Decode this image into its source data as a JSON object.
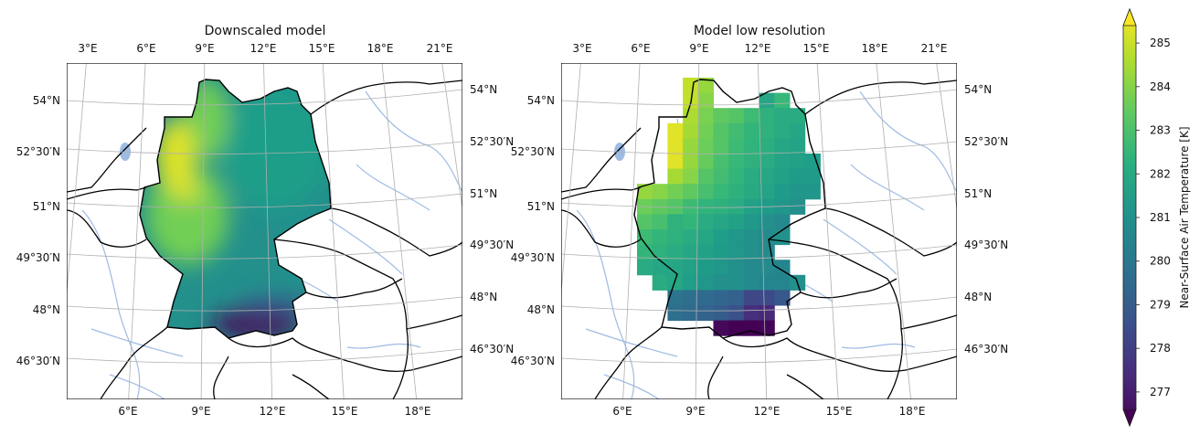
{
  "panels": [
    {
      "title": "Downscaled model",
      "top_lon_labels": [
        "3°E",
        "6°E",
        "9°E",
        "12°E",
        "15°E",
        "18°E",
        "21°E"
      ],
      "bottom_lon_labels": [
        "6°E",
        "9°E",
        "12°E",
        "15°E",
        "18°E"
      ],
      "left_lat_labels": [
        "54°N",
        "52°30′N",
        "51°N",
        "49°30′N",
        "48°N",
        "46°30′N"
      ],
      "right_lat_labels": [
        "54°N",
        "52°30′N",
        "51°N",
        "49°30′N",
        "48°N",
        "46°30′N"
      ]
    },
    {
      "title": "Model low resolution",
      "top_lon_labels": [
        "3°E",
        "6°E",
        "9°E",
        "12°E",
        "15°E",
        "18°E",
        "21°E"
      ],
      "bottom_lon_labels": [
        "6°E",
        "9°E",
        "12°E",
        "15°E",
        "18°E"
      ],
      "left_lat_labels": [
        "54°N",
        "52°30′N",
        "51°N",
        "49°30′N",
        "48°N",
        "46°30′N"
      ],
      "right_lat_labels": [
        "54°N",
        "52°30′N",
        "51°N",
        "49°30′N",
        "48°N",
        "46°30′N"
      ]
    }
  ],
  "colorbar": {
    "label": "Near-Surface Air Temperature [K]",
    "ticks": [
      "277",
      "278",
      "279",
      "280",
      "281",
      "282",
      "283",
      "284",
      "285"
    ],
    "range": [
      276.6,
      285.4
    ],
    "colormap": "viridis",
    "extend": "both"
  },
  "colors": {
    "river": "#9ebbe3",
    "border": "#000000",
    "gridline": "#b0b0b0"
  },
  "chart_data": {
    "type": "heatmap",
    "low_resolution_grid_K": [
      [
        null,
        null,
        null,
        284.6,
        284.0,
        null,
        null,
        null,
        null,
        null,
        null,
        null
      ],
      [
        null,
        null,
        null,
        284.6,
        283.8,
        null,
        null,
        null,
        281.8,
        282.5,
        null,
        null
      ],
      [
        null,
        null,
        null,
        284.3,
        283.6,
        283.2,
        283.0,
        282.6,
        282.2,
        282.0,
        282.0,
        null
      ],
      [
        null,
        null,
        285.0,
        284.2,
        283.5,
        283.0,
        282.7,
        282.4,
        282.2,
        282.0,
        281.8,
        null
      ],
      [
        null,
        null,
        285.0,
        284.0,
        283.4,
        283.0,
        282.6,
        282.3,
        282.1,
        281.8,
        281.7,
        null
      ],
      [
        null,
        null,
        285.0,
        284.0,
        283.3,
        282.8,
        282.5,
        282.2,
        282.0,
        281.7,
        281.6,
        281.5
      ],
      [
        null,
        null,
        284.2,
        283.8,
        283.0,
        282.7,
        282.4,
        282.0,
        281.8,
        281.6,
        281.4,
        281.4
      ],
      [
        284.0,
        283.8,
        283.5,
        283.2,
        282.8,
        282.5,
        282.2,
        281.9,
        281.7,
        281.4,
        281.2,
        281.2
      ],
      [
        283.4,
        283.2,
        283.0,
        282.6,
        282.3,
        282.2,
        282.0,
        281.6,
        281.4,
        281.2,
        281.0,
        null
      ],
      [
        283.0,
        282.8,
        282.2,
        282.4,
        282.0,
        281.8,
        281.6,
        281.3,
        281.0,
        280.8,
        null,
        null
      ],
      [
        282.6,
        282.4,
        282.2,
        282.0,
        281.8,
        281.5,
        281.2,
        281.0,
        280.8,
        281.0,
        null,
        null
      ],
      [
        282.4,
        282.2,
        282.0,
        281.8,
        281.6,
        281.4,
        281.2,
        281.0,
        280.8,
        null,
        null,
        null
      ],
      [
        282.0,
        281.8,
        281.8,
        281.6,
        281.4,
        281.2,
        281.0,
        280.8,
        280.8,
        280.6,
        null,
        null
      ],
      [
        null,
        282.0,
        281.8,
        281.5,
        281.2,
        281.0,
        281.0,
        280.8,
        280.6,
        280.6,
        281.0,
        null
      ],
      [
        null,
        null,
        280.0,
        279.8,
        279.6,
        279.5,
        279.3,
        278.5,
        278.6,
        279.0,
        null,
        null
      ],
      [
        null,
        null,
        279.8,
        279.6,
        279.4,
        279.2,
        278.8,
        277.8,
        277.6,
        null,
        null,
        null
      ],
      [
        null,
        null,
        null,
        null,
        null,
        276.8,
        276.6,
        276.5,
        276.7,
        null,
        null,
        null
      ]
    ],
    "downscaled_regions_K": {
      "northwest": 285.0,
      "west_central": 283.5,
      "north_east": 281.5,
      "central": 281.0,
      "south_alps": 276.8
    }
  }
}
